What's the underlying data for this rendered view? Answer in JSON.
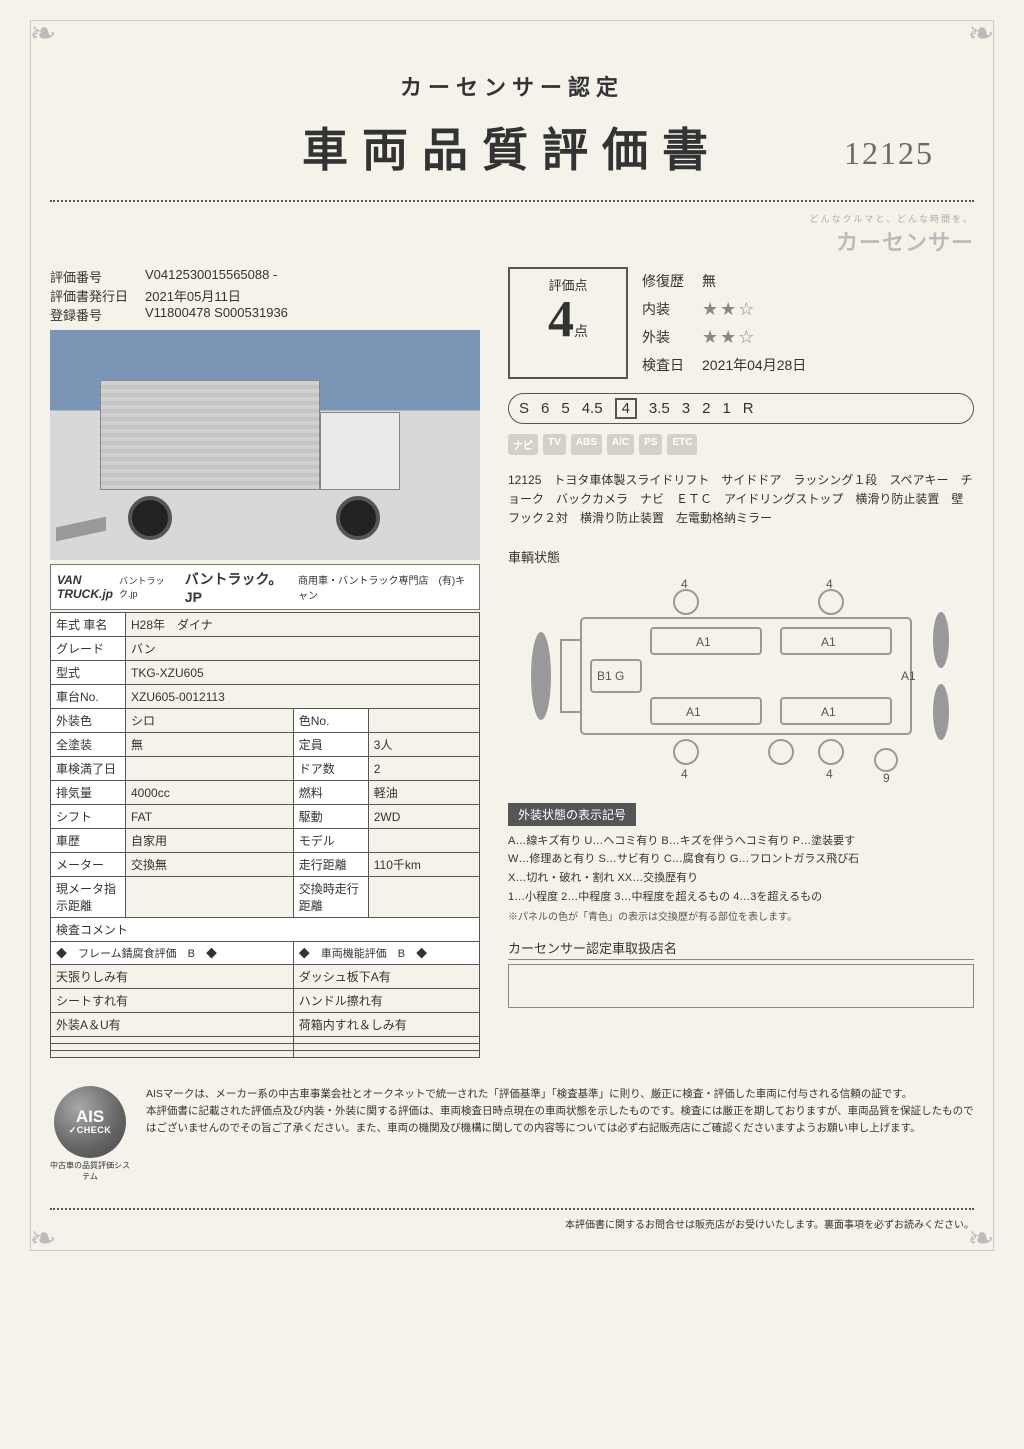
{
  "header": {
    "subtitle": "カーセンサー認定",
    "title": "車両品質評価書",
    "handwritten": "12125"
  },
  "brand": {
    "tagline": "どんなクルマと、どんな時間を。",
    "name": "カーセンサー"
  },
  "meta": {
    "eval_no_label": "評価番号",
    "eval_no": "V0412530015565088 -",
    "issue_label": "評価書発行日",
    "issue": "2021年05月11日",
    "reg_label": "登録番号",
    "reg": "V11800478 S000531936"
  },
  "dealer_bar": {
    "logo1": "VAN",
    "logo2": "TRUCK.jp",
    "ruby": "バントラック.jp",
    "text": "バントラック。JP",
    "sub": "商用車・バントラック専門店　(有)キャン"
  },
  "spec": {
    "rows_full": [
      {
        "k": "年式 車名",
        "v": "H28年　ダイナ"
      },
      {
        "k": "グレード",
        "v": "バン"
      },
      {
        "k": "型式",
        "v": "TKG-XZU605"
      },
      {
        "k": "車台No.",
        "v": "XZU605-0012113"
      }
    ],
    "rows_split": [
      {
        "k1": "外装色",
        "v1": "シロ",
        "k2": "色No.",
        "v2": ""
      },
      {
        "k1": "全塗装",
        "v1": "無",
        "k2": "定員",
        "v2": "3人"
      },
      {
        "k1": "車検満了日",
        "v1": "",
        "k2": "ドア数",
        "v2": "2"
      },
      {
        "k1": "排気量",
        "v1": "4000cc",
        "k2": "燃料",
        "v2": "軽油"
      },
      {
        "k1": "シフト",
        "v1": "FAT",
        "k2": "駆動",
        "v2": "2WD"
      },
      {
        "k1": "車歴",
        "v1": "自家用",
        "k2": "モデル",
        "v2": ""
      },
      {
        "k1": "メーター",
        "v1": "交換無",
        "k2": "走行距離",
        "v2": "110千km"
      },
      {
        "k1": "現メータ指示距離",
        "v1": "",
        "k2": "交換時走行距離",
        "v2": ""
      }
    ],
    "comment_label": "検査コメント",
    "frame_header": "◆　フレーム錆腐食評価　B　◆",
    "func_header": "◆　車両機能評価　B　◆",
    "comment_rows": [
      {
        "l": "天張りしみ有",
        "r": "ダッシュ板下A有"
      },
      {
        "l": "シートすれ有",
        "r": "ハンドル擦れ有"
      },
      {
        "l": "外装A＆U有",
        "r": "荷箱内すれ＆しみ有"
      },
      {
        "l": "",
        "r": ""
      },
      {
        "l": "",
        "r": ""
      },
      {
        "l": "",
        "r": ""
      }
    ]
  },
  "score": {
    "label": "評価点",
    "value": "4",
    "unit": "点",
    "repair_label": "修復歴",
    "repair_value": "無",
    "interior_label": "内装",
    "interior_stars": "★★☆",
    "exterior_label": "外装",
    "exterior_stars": "★★☆",
    "inspect_label": "検査日",
    "inspect_date": "2021年04月28日"
  },
  "scale": [
    "S",
    "6",
    "5",
    "4.5",
    "4",
    "3.5",
    "3",
    "2",
    "1",
    "R"
  ],
  "scale_selected_index": 4,
  "badges": [
    "ナビ",
    "TV",
    "ABS",
    "A/C",
    "PS",
    "ETC"
  ],
  "description": "12125　トヨタ車体製スライドリフト　サイドドア　ラッシング１段　スペアキー　チョーク　バックカメラ　ナビ　ＥＴＣ　アイドリングストップ　横滑り防止装置　壁フック２対　横滑り防止装置　左電動格納ミラー",
  "diagram": {
    "title": "車輌状態",
    "marks": {
      "top_l": "4",
      "top_r": "4",
      "panel_tl": "A1",
      "panel_tr": "A1",
      "mid_l": "B1 G",
      "mid_r": "A1",
      "panel_bl": "A1",
      "panel_br": "A1",
      "bot_l": "4",
      "bot_r": "4",
      "bot_far_r": "9"
    }
  },
  "legend": {
    "title": "外装状態の表示記号",
    "l1": "A…線キズ有り U…ヘコミ有り B…キズを伴うヘコミ有り P…塗装要す",
    "l2": "W…修理あと有り S…サビ有り C…腐食有り G…フロントガラス飛び石",
    "l3": "X…切れ・破れ・割れ XX…交換歴有り",
    "l4": "1…小程度 2…中程度 3…中程度を超えるもの 4…3を超えるもの",
    "note": "※パネルの色が「青色」の表示は交換歴が有る部位を表します。"
  },
  "dealer_name": {
    "title": "カーセンサー認定車取扱店名"
  },
  "ais": {
    "badge_main": "AIS",
    "badge_check": "✓CHECK",
    "badge_sub": "中古車の品質評価システム",
    "text": "AISマークは、メーカー系の中古車事業会社とオークネットで統一された「評価基準」「検査基準」に則り、厳正に検査・評価した車両に付与される信頼の証です。\n本評価書に記載された評価点及び内装・外装に関する評価は、車両検査日時点現在の車両状態を示したものです。検査には厳正を期しておりますが、車両品質を保証したものではございませんのでその旨ご了承ください。また、車両の機関及び機構に関しての内容等については必ず右記販売店にご確認くださいますようお願い申し上げます。"
  },
  "footer": "本評価書に関するお問合せは販売店がお受けいたします。裏面事項を必ずお読みください。",
  "colors": {
    "accent": "#555555",
    "star": "#888888",
    "bg": "#f5f2ea",
    "diagram_stroke": "#999999"
  }
}
